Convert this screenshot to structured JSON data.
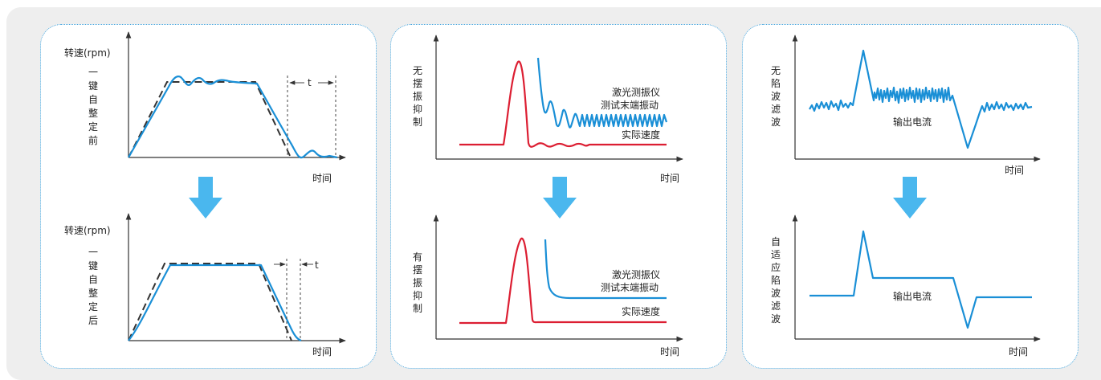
{
  "panel1": {
    "top": {
      "ylabel": "转速(rpm)",
      "side_label": [
        "一",
        "键",
        "自",
        "整",
        "定",
        "前"
      ],
      "xlabel": "时间",
      "t_label": "t"
    },
    "bottom": {
      "ylabel": "转速(rpm)",
      "side_label": [
        "一",
        "键",
        "自",
        "整",
        "定",
        "后"
      ],
      "xlabel": "时间",
      "t_label": "t"
    }
  },
  "panel2": {
    "top": {
      "side_label": [
        "无",
        "摆",
        "振",
        "抑",
        "制"
      ],
      "legend_blue_1": "激光测振仪",
      "legend_blue_2": "测试末端振动",
      "legend_red": "实际速度",
      "xlabel": "时间"
    },
    "bottom": {
      "side_label": [
        "有",
        "摆",
        "振",
        "抑",
        "制"
      ],
      "legend_blue_1": "激光测振仪",
      "legend_blue_2": "测试末端振动",
      "legend_red": "实际速度",
      "xlabel": "时间"
    }
  },
  "panel3": {
    "top": {
      "side_label": [
        "无",
        "陷",
        "波",
        "滤",
        "波"
      ],
      "curve_label": "输出电流",
      "xlabel": "时间"
    },
    "bottom": {
      "side_label": [
        "自",
        "适",
        "应",
        "陷",
        "波",
        "滤",
        "波"
      ],
      "curve_label": "输出电流",
      "xlabel": "时间"
    }
  },
  "colors": {
    "measured_curve": "#1a8fd6",
    "speed_curve": "#dc1e32",
    "reference_dashed": "#333333",
    "transition_arrow": "#4ab7ee",
    "panel_border": "#4aa6dc",
    "background": "#eeeeee"
  }
}
